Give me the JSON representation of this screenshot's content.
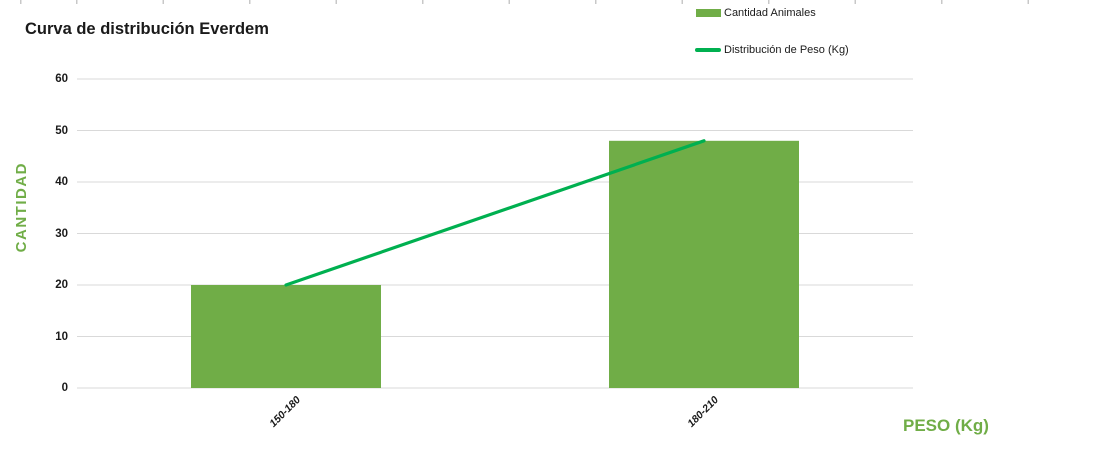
{
  "title": "Curva de distribución Everdem",
  "legend": {
    "position": "top-right",
    "items": [
      {
        "label": "Cantidad Animales",
        "type": "bar",
        "color": "#70AD47"
      },
      {
        "label": "Distribución de Peso (Kg)",
        "type": "line",
        "color": "#00B050"
      }
    ]
  },
  "axes": {
    "y_title": "CANTIDAD",
    "x_title": "PESO (Kg)",
    "y_ticks": [
      0,
      10,
      20,
      30,
      40,
      50,
      60
    ]
  },
  "colors": {
    "bar_green": "#70AD47",
    "line_green": "#00B050",
    "gridline": "#D9D9D9",
    "axis_title_green": "#70AD47",
    "text": "#1A1A1A",
    "background": "#FFFFFF"
  },
  "chart_data": {
    "type": "bar",
    "title": "Curva de distribución Everdem",
    "xlabel": "PESO (Kg)",
    "ylabel": "CANTIDAD",
    "categories": [
      "150-180",
      "180-210"
    ],
    "series": [
      {
        "name": "Cantidad Animales",
        "type": "bar",
        "color": "#70AD47",
        "values": [
          20,
          48
        ]
      },
      {
        "name": "Distribución de Peso (Kg)",
        "type": "line",
        "color": "#00B050",
        "values": [
          20,
          48
        ]
      }
    ],
    "ylim": [
      0,
      60
    ],
    "y_tick_step": 10,
    "grid": true,
    "legend_position": "top-right"
  }
}
